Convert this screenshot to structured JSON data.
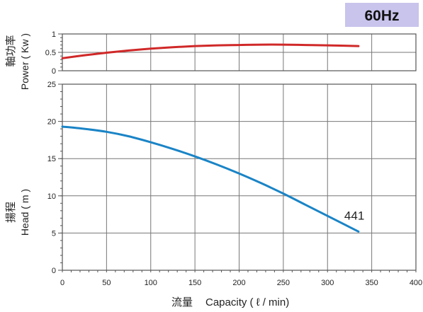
{
  "chart_data": [
    {
      "type": "line",
      "badge": "60Hz",
      "accent": "#c8c4ec",
      "ylabel": "軸功率 Power ( Kw )",
      "ylabel_cjk": "軸功率",
      "ylabel_en": "Power ( Kw )",
      "xlim": [
        0,
        400
      ],
      "ylim": [
        0,
        1
      ],
      "y_ticks": [
        "0",
        "0.5",
        "1"
      ],
      "grid": true,
      "series": [
        {
          "color": "#d02828",
          "x": [
            0,
            25,
            50,
            75,
            100,
            125,
            150,
            175,
            200,
            225,
            250,
            275,
            300,
            335
          ],
          "y": [
            0.34,
            0.42,
            0.49,
            0.55,
            0.6,
            0.64,
            0.67,
            0.69,
            0.7,
            0.71,
            0.71,
            0.7,
            0.69,
            0.67
          ]
        }
      ]
    },
    {
      "type": "line",
      "xlabel": "流量 Capacity ( ℓ / min)",
      "xlabel_cjk": "流量",
      "xlabel_en": "Capacity ( ℓ / min)",
      "ylabel": "揚程 Head ( m )",
      "ylabel_cjk": "揚程",
      "ylabel_en": "Head ( m )",
      "xlim": [
        0,
        400
      ],
      "ylim": [
        0,
        25
      ],
      "x_ticks": [
        "0",
        "50",
        "100",
        "150",
        "200",
        "250",
        "300",
        "350",
        "400"
      ],
      "y_ticks": [
        "0",
        "5",
        "10",
        "15",
        "20",
        "25"
      ],
      "grid": true,
      "series": [
        {
          "name": "441",
          "color": "#1a84c6",
          "x": [
            0,
            25,
            50,
            75,
            100,
            125,
            150,
            175,
            200,
            225,
            250,
            275,
            300,
            335
          ],
          "y": [
            19.3,
            19.0,
            18.6,
            18.0,
            17.2,
            16.3,
            15.3,
            14.2,
            13.0,
            11.7,
            10.3,
            8.8,
            7.3,
            5.2
          ]
        }
      ]
    }
  ]
}
